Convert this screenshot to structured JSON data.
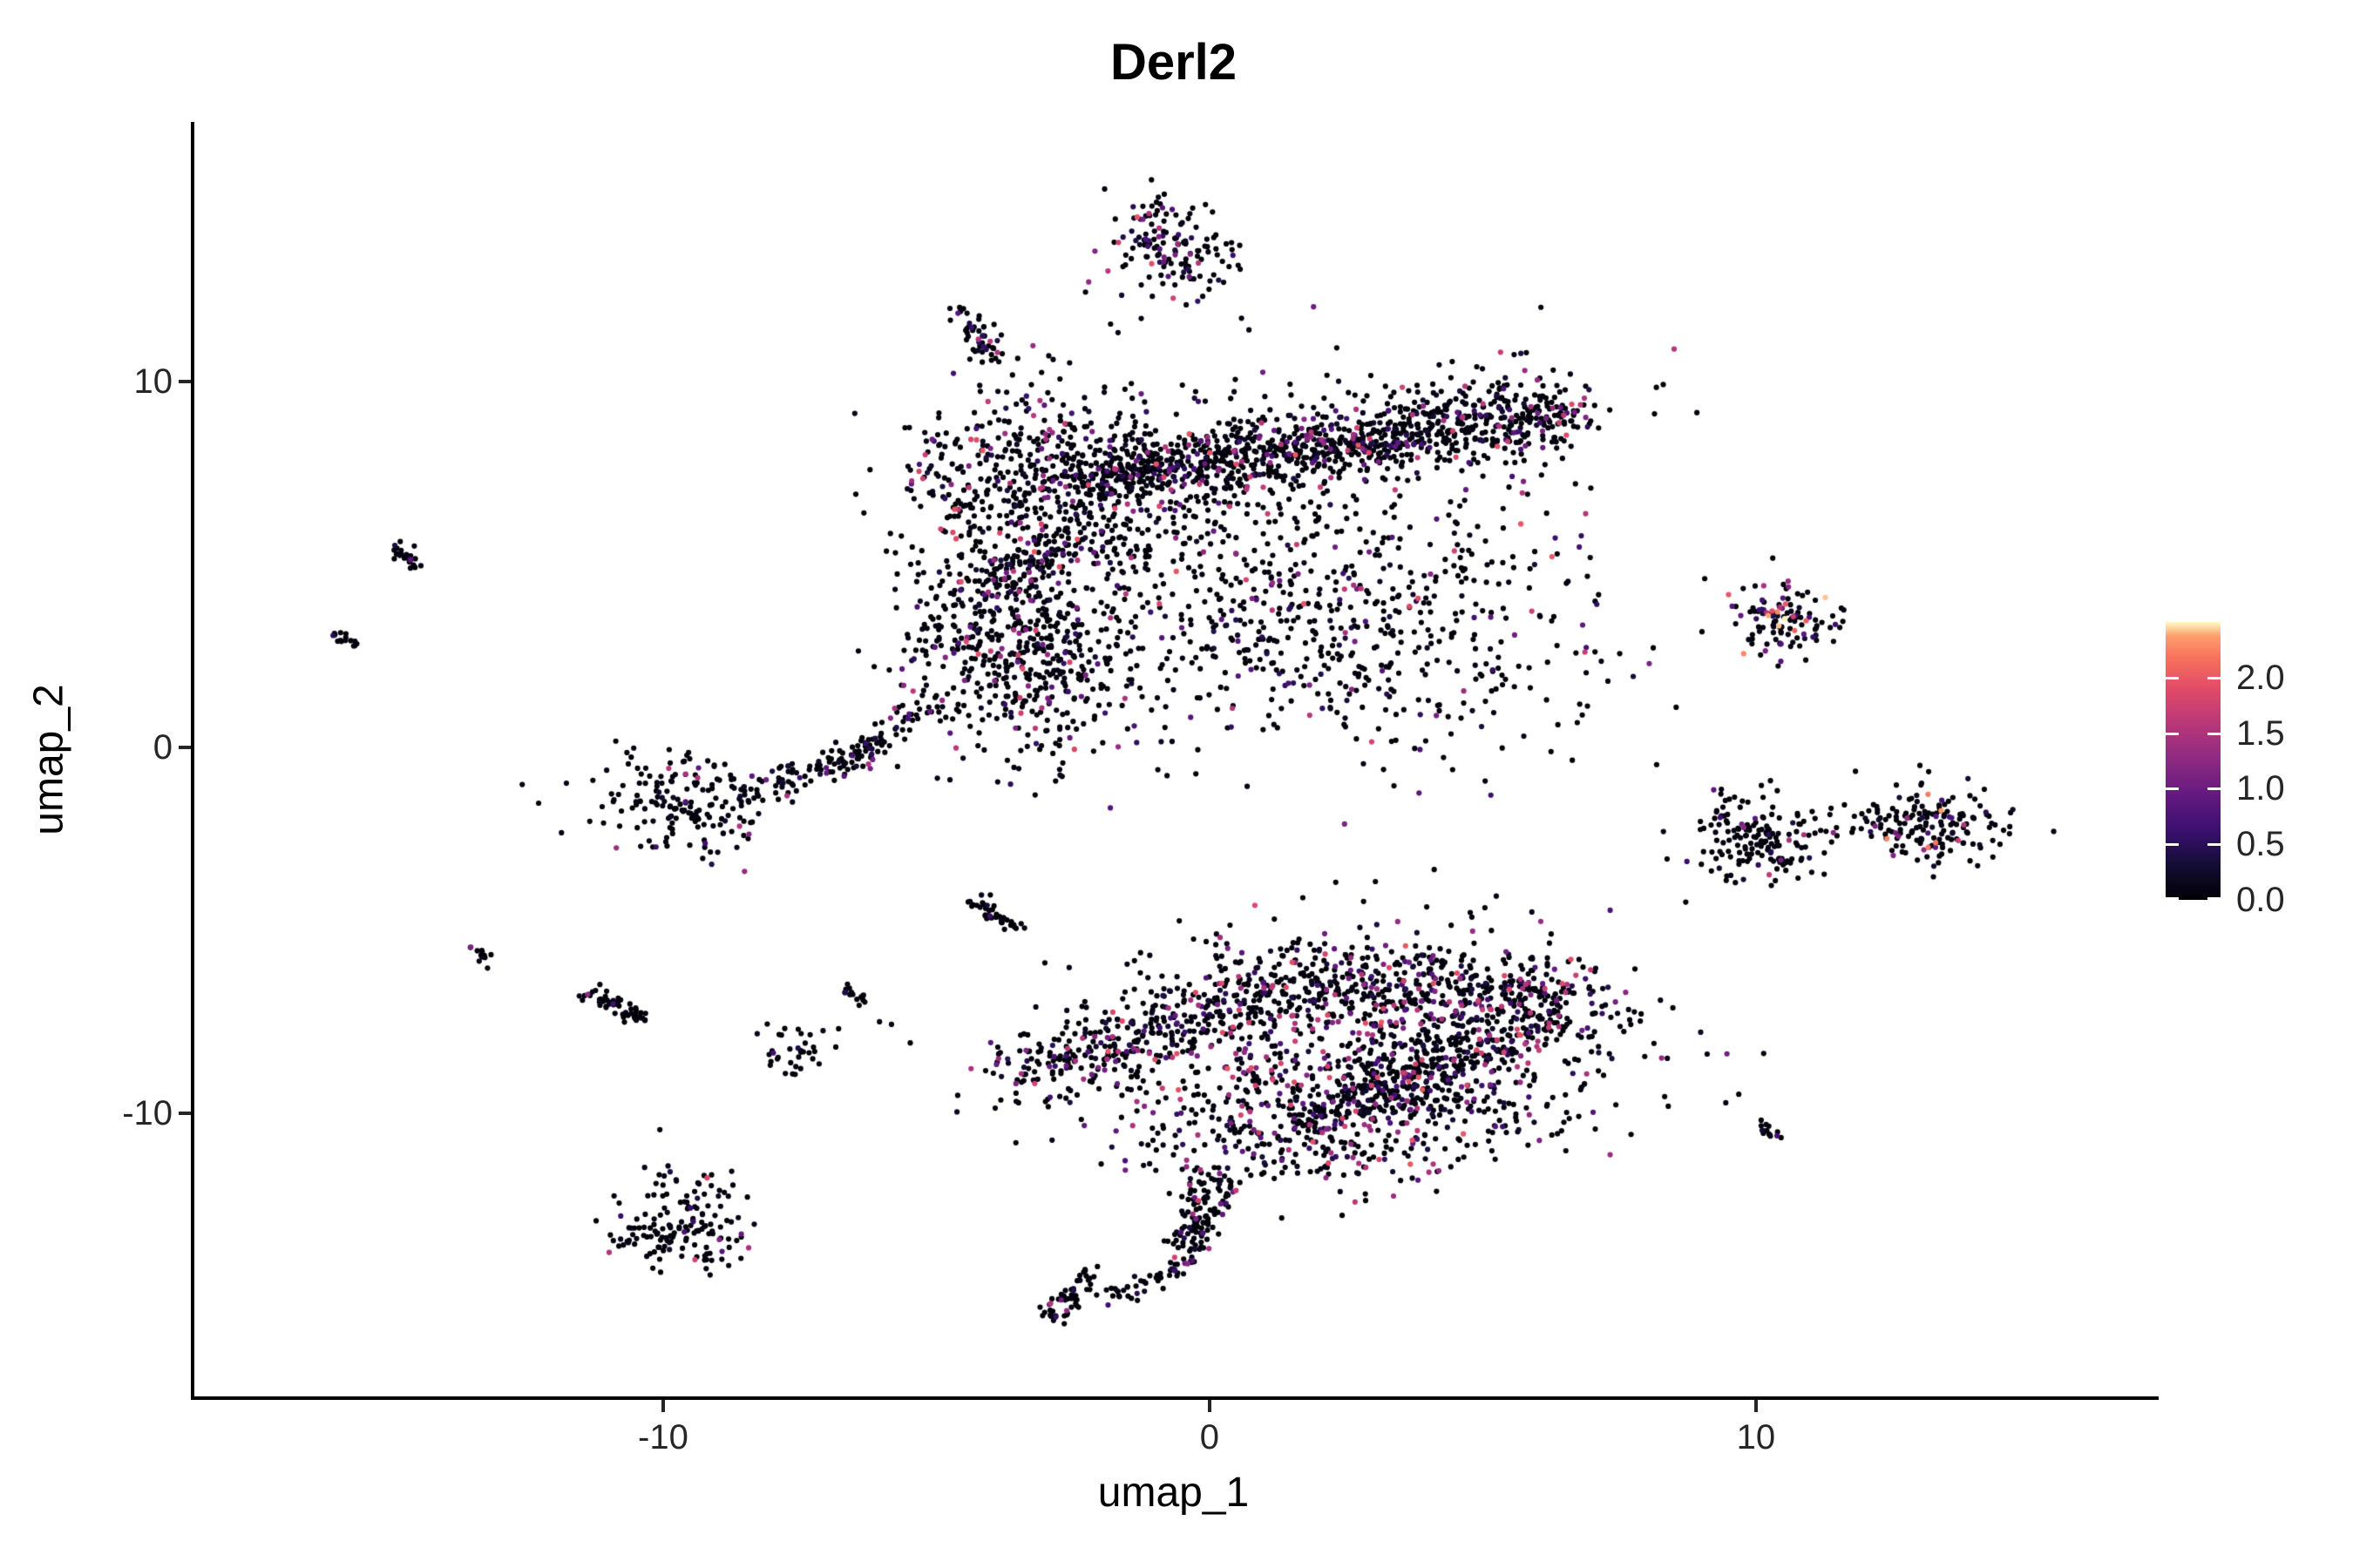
{
  "chart_data": {
    "type": "scatter",
    "title": "Derl2",
    "xlabel": "umap_1",
    "ylabel": "umap_2",
    "xlim": [
      -18.58,
      17.26
    ],
    "ylim": [
      -17.74,
      17.05
    ],
    "x_ticks": [
      {
        "value": -10,
        "label": "-10"
      },
      {
        "value": 0,
        "label": "0"
      },
      {
        "value": 10,
        "label": "10"
      }
    ],
    "y_ticks": [
      {
        "value": -10,
        "label": "-10"
      },
      {
        "value": 0,
        "label": "0"
      },
      {
        "value": 10,
        "label": "10"
      }
    ],
    "grid": false,
    "background": "#ffffff",
    "point_radius_px": 3.1,
    "seed": 987123,
    "colorbar": {
      "position": "right",
      "range": [
        0,
        2.5
      ],
      "ticks": [
        {
          "value": 0.0,
          "label": "0.0"
        },
        {
          "value": 0.5,
          "label": "0.5"
        },
        {
          "value": 1.0,
          "label": "1.0"
        },
        {
          "value": 1.5,
          "label": "1.5"
        },
        {
          "value": 2.0,
          "label": "2.0"
        }
      ],
      "colormap": "magma",
      "stops": [
        [
          0.0,
          "#000004"
        ],
        [
          0.13,
          "#140e36"
        ],
        [
          0.25,
          "#3b0f70"
        ],
        [
          0.38,
          "#641a80"
        ],
        [
          0.5,
          "#8c2981"
        ],
        [
          0.63,
          "#b73779"
        ],
        [
          0.75,
          "#de4968"
        ],
        [
          0.87,
          "#f7705c"
        ],
        [
          0.95,
          "#fe9f6d"
        ],
        [
          1.0,
          "#fcfdbf"
        ]
      ]
    },
    "clusters": [
      {
        "name": "top-blob-left",
        "kind": "gauss",
        "cx": -1.12,
        "cy": 14.05,
        "sx": 0.4,
        "sy": 0.5,
        "n": 55,
        "p": 0.45,
        "vmax": 2.2
      },
      {
        "name": "top-blob-right",
        "kind": "gauss",
        "cx": -0.26,
        "cy": 13.5,
        "sx": 0.4,
        "sy": 0.55,
        "n": 55,
        "p": 0.45,
        "vmax": 2.2
      },
      {
        "name": "top-blob-halo",
        "kind": "gauss",
        "cx": -0.75,
        "cy": 13.35,
        "sx": 0.75,
        "sy": 0.8,
        "n": 45,
        "p": 0.3,
        "vmax": 2.2
      },
      {
        "name": "comma-streak",
        "kind": "line",
        "x1": -4.56,
        "y1": 11.95,
        "x2": -3.86,
        "y2": 10.35,
        "w": 0.14,
        "n": 50,
        "p": 0.3,
        "vmax": 1.6
      },
      {
        "name": "upper-dense-blob",
        "kind": "gauss",
        "cx": -3.24,
        "cy": 7.1,
        "sx": 1.15,
        "sy": 1.5,
        "n": 560,
        "p": 0.3,
        "vmax": 2.0
      },
      {
        "name": "upper-band-core",
        "kind": "line",
        "x1": -2.5,
        "y1": 7.25,
        "x2": 6.6,
        "y2": 9.2,
        "w": 0.45,
        "n": 950,
        "p": 0.27,
        "vmax": 2.0
      },
      {
        "name": "upper-band-fringe",
        "kind": "line",
        "x1": -2.5,
        "y1": 7.25,
        "x2": 6.6,
        "y2": 9.2,
        "w": 1.1,
        "n": 300,
        "p": 0.27,
        "vmax": 2.0
      },
      {
        "name": "upper-fill-a",
        "kind": "gauss",
        "cx": 1.8,
        "cy": 5.2,
        "sx": 2.2,
        "sy": 1.7,
        "n": 240,
        "p": 0.3,
        "vmax": 2.0
      },
      {
        "name": "upper-fill-b",
        "kind": "gauss",
        "cx": 3.7,
        "cy": 2.7,
        "sx": 1.8,
        "sy": 1.6,
        "n": 270,
        "p": 0.3,
        "vmax": 2.0
      },
      {
        "name": "upper-fill-c",
        "kind": "gauss",
        "cx": 0.5,
        "cy": 3.6,
        "sx": 1.5,
        "sy": 1.6,
        "n": 190,
        "p": 0.3,
        "vmax": 2.0
      },
      {
        "name": "appendage-blob-a",
        "kind": "gauss",
        "cx": -3.95,
        "cy": 2.7,
        "sx": 0.95,
        "sy": 1.3,
        "n": 300,
        "p": 0.3,
        "vmax": 2.0
      },
      {
        "name": "appendage-blob-b",
        "kind": "gauss",
        "cx": -2.76,
        "cy": 2.1,
        "sx": 0.9,
        "sy": 1.2,
        "n": 230,
        "p": 0.3,
        "vmax": 2.0
      },
      {
        "name": "appendage-arc",
        "kind": "line",
        "x1": -2.44,
        "y1": 5.8,
        "x2": -4.27,
        "y2": 4.1,
        "w": 0.3,
        "n": 90,
        "p": 0.3,
        "vmax": 2.0
      },
      {
        "name": "appendage-tail",
        "kind": "line",
        "x1": -4.99,
        "y1": 1.4,
        "x2": -6.75,
        "y2": -0.55,
        "w": 0.2,
        "n": 70,
        "p": 0.2,
        "vmax": 1.8
      },
      {
        "name": "left-cluster-blob",
        "kind": "gauss",
        "cx": -9.67,
        "cy": -1.48,
        "sx": 0.8,
        "sy": 0.72,
        "n": 170,
        "p": 0.13,
        "vmax": 1.8
      },
      {
        "name": "left-cluster-bridge",
        "kind": "line",
        "x1": -8.6,
        "y1": -1.35,
        "x2": -6.2,
        "y2": -0.05,
        "w": 0.22,
        "n": 90,
        "p": 0.2,
        "vmax": 1.8
      },
      {
        "name": "farleft-streak-upper",
        "kind": "line",
        "x1": -14.93,
        "y1": 5.48,
        "x2": -14.48,
        "y2": 4.9,
        "w": 0.1,
        "n": 26,
        "p": 0.15,
        "vmax": 1.5
      },
      {
        "name": "farleft-streak-lower",
        "kind": "line",
        "x1": -15.98,
        "y1": 3.2,
        "x2": -15.69,
        "y2": 2.8,
        "w": 0.1,
        "n": 16,
        "p": 0.2,
        "vmax": 1.5
      },
      {
        "name": "mid-diag-dash",
        "kind": "line",
        "x1": -4.24,
        "y1": -4.14,
        "x2": -3.59,
        "y2": -4.93,
        "w": 0.11,
        "n": 40,
        "p": 0.05,
        "vmax": 1.2
      },
      {
        "name": "small-dash-far",
        "kind": "line",
        "x1": -13.52,
        "y1": -5.5,
        "x2": -13.27,
        "y2": -5.85,
        "w": 0.1,
        "n": 12,
        "p": 0.05,
        "vmax": 1.2
      },
      {
        "name": "curved-dash",
        "kind": "line",
        "x1": -11.51,
        "y1": -6.6,
        "x2": -10.3,
        "y2": -7.45,
        "w": 0.13,
        "n": 55,
        "p": 0.1,
        "vmax": 1.4
      },
      {
        "name": "small-cluster-a",
        "kind": "gauss",
        "cx": -7.61,
        "cy": -8.29,
        "sx": 0.33,
        "sy": 0.33,
        "n": 36,
        "p": 0.1,
        "vmax": 1.6
      },
      {
        "name": "small-dash-b",
        "kind": "line",
        "x1": -6.65,
        "y1": -6.55,
        "x2": -6.3,
        "y2": -7.0,
        "w": 0.1,
        "n": 15,
        "p": 0.05,
        "vmax": 1.2
      },
      {
        "name": "lower-top-band",
        "kind": "line",
        "x1": 0.67,
        "y1": -6.3,
        "x2": 6.95,
        "y2": -6.72,
        "w": 0.5,
        "n": 380,
        "p": 0.45,
        "vmax": 2.0
      },
      {
        "name": "lower-core",
        "kind": "gauss",
        "cx": 3.38,
        "cy": -8.05,
        "sx": 2.35,
        "sy": 1.4,
        "n": 820,
        "p": 0.45,
        "vmax": 2.0
      },
      {
        "name": "lower-diag-streak",
        "kind": "line",
        "x1": 1.6,
        "y1": -10.5,
        "x2": 6.4,
        "y2": -7.4,
        "w": 0.3,
        "n": 280,
        "p": 0.4,
        "vmax": 2.0
      },
      {
        "name": "lower-left-horn",
        "kind": "line",
        "x1": -3.58,
        "y1": -8.95,
        "x2": 0.62,
        "y2": -6.92,
        "w": 0.55,
        "n": 330,
        "p": 0.4,
        "vmax": 2.0
      },
      {
        "name": "lower-bottom",
        "kind": "gauss",
        "cx": 1.7,
        "cy": -10.2,
        "sx": 2.0,
        "sy": 1.05,
        "n": 360,
        "p": 0.4,
        "vmax": 2.0
      },
      {
        "name": "tail-strand-a",
        "kind": "line",
        "x1": -0.18,
        "y1": -11.5,
        "x2": -0.45,
        "y2": -13.9,
        "w": 0.17,
        "n": 65,
        "p": 0.35,
        "vmax": 1.8
      },
      {
        "name": "tail-strand-b",
        "kind": "line",
        "x1": 0.35,
        "y1": -11.5,
        "x2": -0.26,
        "y2": -13.6,
        "w": 0.17,
        "n": 60,
        "p": 0.35,
        "vmax": 1.8
      },
      {
        "name": "tail-arm",
        "kind": "line",
        "x1": -0.33,
        "y1": -14.1,
        "x2": -1.88,
        "y2": -15.05,
        "w": 0.14,
        "n": 45,
        "p": 0.3,
        "vmax": 1.8
      },
      {
        "name": "tail-hook",
        "kind": "line",
        "x1": -2.2,
        "y1": -14.4,
        "x2": -2.9,
        "y2": -15.65,
        "w": 0.15,
        "n": 55,
        "p": 0.3,
        "vmax": 1.8
      },
      {
        "name": "right-hot-cluster",
        "kind": "gauss",
        "cx": 10.6,
        "cy": 3.5,
        "sx": 0.48,
        "sy": 0.55,
        "n": 115,
        "p": 0.4,
        "vmax": 2.5
      },
      {
        "name": "right-mid-left",
        "kind": "gauss",
        "cx": 9.95,
        "cy": -2.55,
        "sx": 0.6,
        "sy": 0.62,
        "n": 165,
        "p": 0.15,
        "vmax": 2.2
      },
      {
        "name": "right-mid-bridge",
        "kind": "line",
        "x1": 10.95,
        "y1": -2.35,
        "x2": 12.0,
        "y2": -2.3,
        "w": 0.05,
        "n": 7,
        "p": 0.3,
        "vmax": 1.5
      },
      {
        "name": "right-mid-right",
        "kind": "gauss",
        "cx": 13.2,
        "cy": -2.12,
        "sx": 0.75,
        "sy": 0.5,
        "n": 175,
        "p": 0.22,
        "vmax": 2.5
      },
      {
        "name": "right-low-dash",
        "kind": "line",
        "x1": 10.05,
        "y1": -10.2,
        "x2": 10.4,
        "y2": -10.7,
        "w": 0.1,
        "n": 14,
        "p": 0.05,
        "vmax": 1.2
      },
      {
        "name": "bottomleft-crescent",
        "kind": "gauss",
        "cx": -9.7,
        "cy": -13.25,
        "sx": 0.65,
        "sy": 0.5,
        "n": 135,
        "p": 0.13,
        "vmax": 1.8
      },
      {
        "name": "bottomleft-clump-a",
        "kind": "gauss",
        "cx": -9.98,
        "cy": -11.7,
        "sx": 0.15,
        "sy": 0.2,
        "n": 8,
        "p": 0.1,
        "vmax": 1.5
      },
      {
        "name": "bottomleft-clump-b",
        "kind": "gauss",
        "cx": -9.05,
        "cy": -12.0,
        "sx": 0.35,
        "sy": 0.3,
        "n": 16,
        "p": 0.25,
        "vmax": 2.2
      },
      {
        "name": "isolated-points",
        "kind": "points",
        "p": 0.2,
        "vmax": 1.2,
        "pts": [
          [
            2.82,
            -4.21
          ],
          [
            9.63,
            3.38
          ],
          [
            -6.84,
            -8.19
          ],
          [
            -6.04,
            -7.5
          ],
          [
            -5.82,
            -7.57
          ],
          [
            -10.06,
            -10.45
          ],
          [
            -1.5,
            -14.75
          ],
          [
            -1.2,
            -14.6
          ]
        ]
      }
    ]
  }
}
